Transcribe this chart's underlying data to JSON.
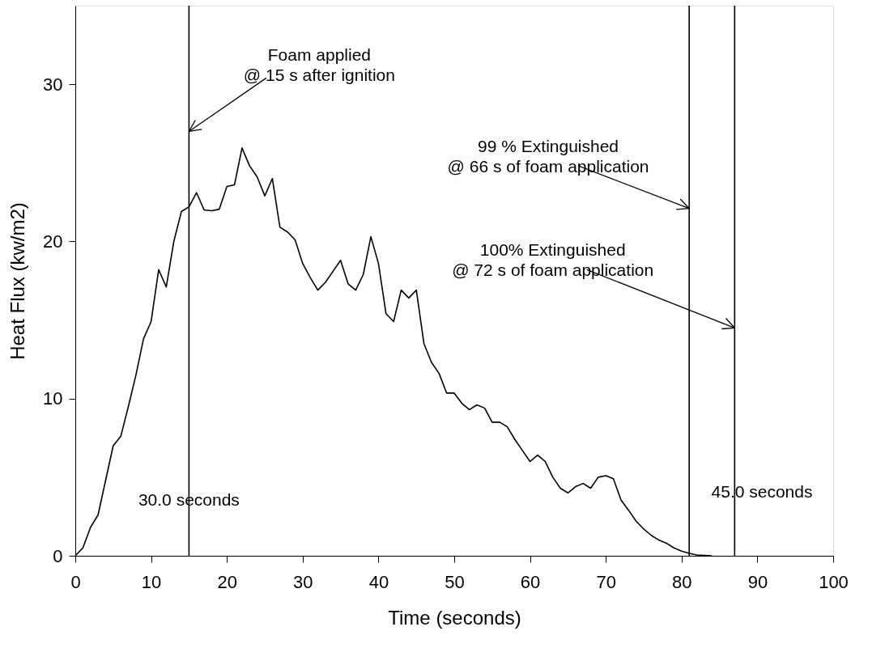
{
  "chart_data": {
    "type": "line",
    "xlabel": "Time (seconds)",
    "ylabel": "Heat Flux (kw/m2)",
    "x": [
      0,
      1,
      2,
      3,
      4,
      5,
      6,
      7,
      8,
      9,
      10,
      11,
      12,
      13,
      14,
      15,
      16,
      17,
      18,
      19,
      20,
      21,
      22,
      23,
      24,
      25,
      26,
      27,
      28,
      29,
      30,
      31,
      32,
      33,
      34,
      35,
      36,
      37,
      38,
      39,
      40,
      41,
      42,
      43,
      44,
      45,
      46,
      47,
      48,
      49,
      50,
      51,
      52,
      53,
      54,
      55,
      56,
      57,
      58,
      59,
      60,
      61,
      62,
      63,
      64,
      65,
      66,
      67,
      68,
      69,
      70,
      71,
      72,
      73,
      74,
      75,
      76,
      77,
      78,
      79,
      80,
      81,
      82,
      83,
      84
    ],
    "values": [
      0,
      0.5,
      1.8,
      2.6,
      4.8,
      7.0,
      7.6,
      9.5,
      11.5,
      13.8,
      14.9,
      18.2,
      17.1,
      20.0,
      21.9,
      22.2,
      23.1,
      22.0,
      21.95,
      22.05,
      23.5,
      23.6,
      25.95,
      24.8,
      24.1,
      22.9,
      24.0,
      20.9,
      20.6,
      20.1,
      18.6,
      17.7,
      16.9,
      17.4,
      18.1,
      18.8,
      17.3,
      16.9,
      17.9,
      20.3,
      18.6,
      15.4,
      14.9,
      16.9,
      16.4,
      16.9,
      13.5,
      12.3,
      11.6,
      10.35,
      10.35,
      9.7,
      9.3,
      9.6,
      9.4,
      8.5,
      8.5,
      8.2,
      7.4,
      6.7,
      6.0,
      6.4,
      6.0,
      5.0,
      4.3,
      4.0,
      4.4,
      4.6,
      4.3,
      5.0,
      5.1,
      4.9,
      3.55,
      2.9,
      2.2,
      1.7,
      1.3,
      1.0,
      0.8,
      0.5,
      0.3,
      0.15,
      0.05,
      0.02,
      0
    ],
    "color": "#000000",
    "xlim": [
      0,
      100
    ],
    "ylim": [
      0,
      35
    ],
    "xticks": [
      0,
      10,
      20,
      30,
      40,
      50,
      60,
      70,
      80,
      90,
      100
    ],
    "yticks": [
      0,
      10,
      20,
      30
    ],
    "ref_lines": [
      {
        "axis": "x",
        "value": 15,
        "color": "#000000"
      },
      {
        "axis": "x",
        "value": 81,
        "color": "#000000"
      },
      {
        "axis": "x",
        "value": 87,
        "color": "#000000"
      }
    ],
    "annotations": [
      {
        "text": "Foam applied\n@ 15 s after ignition",
        "x": 15,
        "y": 27
      },
      {
        "text": "99 % Extinguished\n@ 66 s of foam application",
        "x": 81,
        "y": 22.1
      },
      {
        "text": "100% Extinguished\n@ 72 s of foam application",
        "x": 87,
        "y": 14.5
      },
      "30.0 seconds",
      "45.0 seconds"
    ],
    "grid": false,
    "marker": "none",
    "line_style": "solid"
  }
}
